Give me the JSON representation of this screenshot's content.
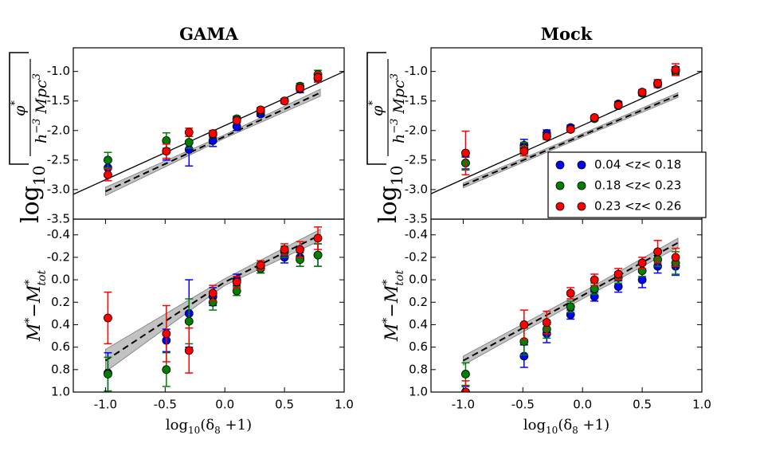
{
  "chart_data": [
    {
      "type": "scatter",
      "title": "GAMA",
      "ylabel_fraction": [
        "log",
        "10",
        "φ",
        "*",
        "h",
        "−3",
        " Mpc",
        "3"
      ],
      "xlim": [
        -1.27,
        1.0
      ],
      "ylim": [
        -3.5,
        -0.6
      ],
      "yticks": [
        {
          "value": -1,
          "label": "-1.0"
        },
        -1.5,
        {
          "value": -2,
          "label": "-2.0"
        },
        -2.5,
        {
          "value": -3,
          "label": "-3.0"
        },
        -3.5
      ],
      "x": [
        -0.98,
        -0.49,
        -0.3,
        -0.1,
        0.1,
        0.3,
        0.5,
        0.63,
        0.78
      ],
      "series": [
        {
          "color": "#0000ff",
          "values": [
            -2.63,
            -2.35,
            -2.32,
            -2.17,
            -1.93,
            -1.72,
            -1.5,
            -1.3,
            -1.12
          ],
          "errors": [
            0.15,
            0.15,
            0.28,
            0.1,
            0.07,
            0.04,
            0.04,
            0.06,
            0.06
          ]
        },
        {
          "color": "#008000",
          "values": [
            -2.5,
            -2.17,
            -2.2,
            -2.07,
            -1.8,
            -1.67,
            -1.5,
            -1.25,
            -1.05
          ],
          "errors": [
            0.13,
            0.13,
            0.1,
            0.05,
            0.04,
            0.04,
            0.04,
            0.05,
            0.07
          ]
        },
        {
          "color": "#ff0000",
          "values": [
            -2.75,
            -2.35,
            -2.03,
            -2.05,
            -1.83,
            -1.65,
            -1.5,
            -1.28,
            -1.1
          ],
          "errors": [
            0.1,
            0.12,
            0.07,
            0.05,
            0.04,
            0.04,
            0.03,
            0.05,
            0.08
          ]
        }
      ],
      "fits": [
        {
          "style": "solid",
          "x": [
            -1.27,
            1.0
          ],
          "values": [
            -3.08,
            -1.0
          ]
        },
        {
          "style": "dashed",
          "x": [
            -1.0,
            0,
            0.8
          ],
          "values": [
            -3.03,
            -2.1,
            -1.36
          ],
          "band_lower": [
            -3.1,
            -2.13,
            -1.42
          ],
          "band_upper": [
            -2.96,
            -2.07,
            -1.3
          ]
        }
      ]
    },
    {
      "type": "scatter",
      "title": "Mock",
      "ylabel_fraction": [
        "log",
        "10",
        "φ",
        "*",
        "h",
        "−3",
        " Mpc",
        "3"
      ],
      "xlim": [
        -1.27,
        1.0
      ],
      "ylim": [
        -3.5,
        -0.6
      ],
      "yticks": [
        {
          "value": -1,
          "label": "-1.0"
        },
        -1.5,
        {
          "value": -2,
          "label": "-2.0"
        },
        -2.5,
        {
          "value": -3,
          "label": "-3.0"
        },
        -3.5
      ],
      "legend": "lower right",
      "x": [
        -0.98,
        -0.49,
        -0.3,
        -0.1,
        0.1,
        0.3,
        0.5,
        0.63,
        0.78
      ],
      "series": [
        {
          "name": "0.04 <z< 0.18",
          "color": "#0000ff",
          "values": [
            -2.55,
            -2.25,
            -2.05,
            -1.95,
            -1.78,
            -1.55,
            -1.35,
            -1.22,
            -0.98
          ],
          "errors": [
            0.1,
            0.1,
            0.06,
            0.04,
            0.03,
            0.04,
            0.04,
            0.05,
            0.06
          ]
        },
        {
          "name": "0.18 <z< 0.23",
          "color": "#008000",
          "values": [
            -2.55,
            -2.3,
            -2.1,
            -1.98,
            -1.8,
            -1.58,
            -1.37,
            -1.2,
            -1.0
          ],
          "errors": [
            0.12,
            0.1,
            0.05,
            0.04,
            0.03,
            0.03,
            0.04,
            0.06,
            0.06
          ]
        },
        {
          "name": "0.23 <z< 0.26",
          "color": "#ff0000",
          "values": [
            -2.38,
            -2.35,
            -2.1,
            -1.98,
            -1.78,
            -1.57,
            -1.35,
            -1.2,
            -0.97
          ],
          "errors": [
            0.37,
            0.08,
            0.05,
            0.04,
            0.03,
            0.03,
            0.04,
            0.06,
            0.1
          ]
        }
      ],
      "fits": [
        {
          "style": "solid",
          "x": [
            -1.27,
            1.0
          ],
          "values": [
            -3.07,
            -1.0
          ]
        },
        {
          "style": "dashed",
          "x": [
            -1.0,
            0,
            0.8
          ],
          "values": [
            -2.93,
            -2.08,
            -1.4
          ],
          "band_lower": [
            -2.97,
            -2.11,
            -1.44
          ],
          "band_upper": [
            -2.89,
            -2.05,
            -1.36
          ]
        }
      ]
    },
    {
      "type": "scatter",
      "ylabel": [
        "M",
        "*",
        "−M",
        "*",
        "tot"
      ],
      "xlabel": [
        "log",
        "10",
        "(δ",
        "8",
        " +1)"
      ],
      "xlim": [
        -1.27,
        1.0
      ],
      "ylim": [
        1.0,
        -0.54
      ],
      "xticks": [
        {
          "value": -1,
          "label": "-1.0"
        },
        -0.5,
        {
          "value": 0,
          "label": "0.0"
        },
        0.5,
        {
          "value": 1,
          "label": "1.0"
        }
      ],
      "yticks": [
        {
          "value": 1,
          "label": "1.0"
        },
        0.8,
        0.6,
        0.4,
        0.2,
        {
          "value": 0,
          "label": "0.0"
        },
        -0.2,
        -0.4
      ],
      "x": [
        -0.98,
        -0.49,
        -0.3,
        -0.1,
        0.1,
        0.3,
        0.5,
        0.63,
        0.78
      ],
      "series": [
        {
          "color": "#0000ff",
          "values": [
            0.83,
            0.54,
            0.3,
            0.15,
            0.0,
            -0.1,
            -0.2,
            -0.2,
            -0.22
          ],
          "errors": [
            0.18,
            0.1,
            0.3,
            0.08,
            0.05,
            0.04,
            0.05,
            0.08,
            0.1
          ]
        },
        {
          "color": "#008000",
          "values": [
            0.84,
            0.8,
            0.37,
            0.2,
            0.1,
            -0.1,
            -0.25,
            -0.18,
            -0.22
          ],
          "errors": [
            0.15,
            0.15,
            0.2,
            0.07,
            0.04,
            0.04,
            0.05,
            0.06,
            0.1
          ]
        },
        {
          "color": "#ff0000",
          "values": [
            0.34,
            0.48,
            0.63,
            0.12,
            0.02,
            -0.13,
            -0.27,
            -0.27,
            -0.37
          ],
          "errors": [
            0.23,
            0.25,
            0.2,
            0.07,
            0.05,
            0.04,
            0.05,
            0.07,
            0.1
          ]
        }
      ],
      "fits": [
        {
          "style": "dashed",
          "x": [
            -1.0,
            0,
            0.8
          ],
          "values": [
            0.72,
            0.02,
            -0.4
          ],
          "band_lower": [
            0.62,
            -0.01,
            -0.45
          ],
          "band_upper": [
            0.82,
            0.05,
            -0.35
          ]
        }
      ]
    },
    {
      "type": "scatter",
      "ylabel": [
        "M",
        "*",
        "−M",
        "*",
        "tot"
      ],
      "xlabel": [
        "log",
        "10",
        "(δ",
        "8",
        " +1)"
      ],
      "xlim": [
        -1.27,
        1.0
      ],
      "ylim": [
        1.0,
        -0.54
      ],
      "xticks": [
        {
          "value": -1,
          "label": "-1.0"
        },
        -0.5,
        {
          "value": 0,
          "label": "0.0"
        },
        0.5,
        {
          "value": 1,
          "label": "1.0"
        }
      ],
      "yticks": [
        {
          "value": 1,
          "label": "1.0"
        },
        0.8,
        0.6,
        0.4,
        0.2,
        {
          "value": 0,
          "label": "0.0"
        },
        -0.2,
        -0.4
      ],
      "x": [
        -0.98,
        -0.49,
        -0.3,
        -0.1,
        0.1,
        0.3,
        0.5,
        0.63,
        0.78
      ],
      "series": [
        {
          "color": "#0000ff",
          "values": [
            1.0,
            0.68,
            0.48,
            0.31,
            0.15,
            0.06,
            0.0,
            -0.12,
            -0.12
          ],
          "errors": [
            0.05,
            0.1,
            0.08,
            0.04,
            0.04,
            0.05,
            0.07,
            0.06,
            0.08
          ]
        },
        {
          "color": "#008000",
          "values": [
            0.84,
            0.55,
            0.44,
            0.24,
            0.08,
            -0.02,
            -0.08,
            -0.18,
            -0.15
          ],
          "errors": [
            0.1,
            0.12,
            0.08,
            0.05,
            0.05,
            0.05,
            0.05,
            0.06,
            0.1
          ]
        },
        {
          "color": "#ff0000",
          "values": [
            1.0,
            0.4,
            0.38,
            0.12,
            0.0,
            -0.05,
            -0.15,
            -0.25,
            -0.2
          ],
          "errors": [
            0.1,
            0.13,
            0.1,
            0.05,
            0.05,
            0.05,
            0.05,
            0.1,
            0.08
          ]
        }
      ],
      "fits": [
        {
          "style": "dashed",
          "x": [
            -1.0,
            0,
            0.8
          ],
          "values": [
            0.72,
            0.14,
            -0.33
          ],
          "band_lower": [
            0.68,
            0.11,
            -0.37
          ],
          "band_upper": [
            0.76,
            0.17,
            -0.29
          ]
        }
      ]
    }
  ]
}
